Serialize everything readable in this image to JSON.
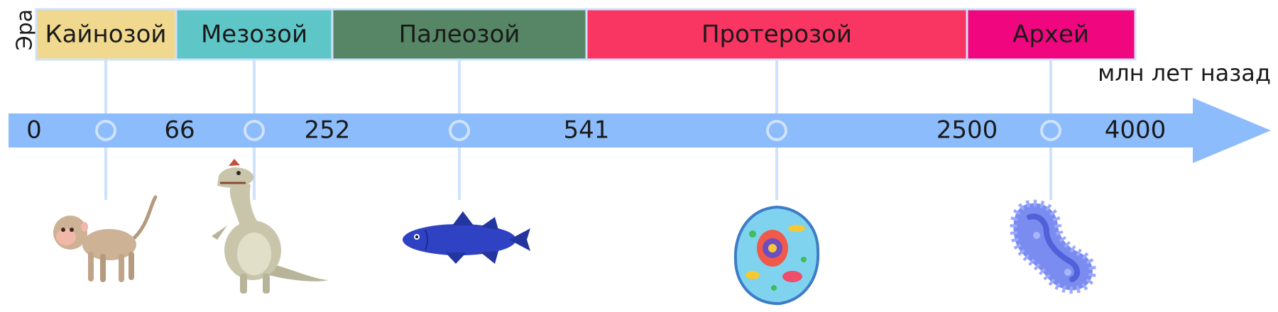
{
  "row_label": "Эра",
  "axis_unit": "млн лет назад",
  "eras": [
    {
      "name": "Кайнозой",
      "color": "#f0d98e"
    },
    {
      "name": "Мезозой",
      "color": "#5fc6c8"
    },
    {
      "name": "Палеозой",
      "color": "#568665"
    },
    {
      "name": "Протерозой",
      "color": "#f93562"
    },
    {
      "name": "Архей",
      "color": "#f0077f"
    }
  ],
  "ticks": [
    "0",
    "66",
    "252",
    "541",
    "2500",
    "4000"
  ],
  "illustrations": [
    "monkey-icon",
    "dinosaur-icon",
    "coelacanth-fish-icon",
    "eukaryotic-cell-icon",
    "bacterium-icon"
  ],
  "colors": {
    "arrow": "#8cbcfb",
    "connector": "#cfe2fb",
    "era_border": "#cfe2fb"
  }
}
